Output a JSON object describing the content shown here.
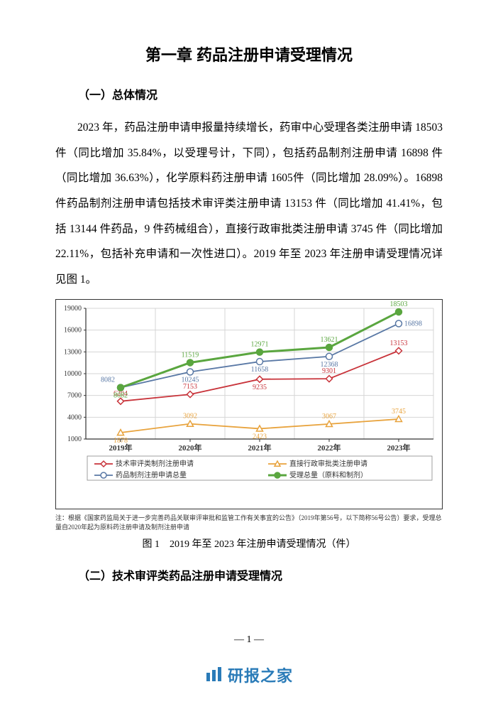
{
  "title": "第一章 药品注册申请受理情况",
  "section1_title": "（一）总体情况",
  "paragraph1": "2023 年，药品注册申请申报量持续增长，药审中心受理各类注册申请 18503 件（同比增加 35.84%，以受理号计，下同），包括药品制剂注册申请 16898 件（同比增加 36.63%），化学原料药注册申请 1605件（同比增加 28.09%）。16898 件药品制剂注册申请包括技术审评类注册申请 13153 件（同比增加 41.41%，包括 13144 件药品，9 件药械组合），直接行政审批类注册申请 3745 件（同比增加 22.11%，包括补充申请和一次性进口）。2019 年至 2023 年注册申请受理情况详见图 1。",
  "chart": {
    "type": "line",
    "categories": [
      "2019年",
      "2020年",
      "2021年",
      "2022年",
      "2023年"
    ],
    "series": [
      {
        "name": "技术审评类制剂注册申请",
        "values": [
          6204,
          7153,
          9235,
          9301,
          13153
        ],
        "color": "#c8333a",
        "marker": "diamond",
        "label_pos": [
          "above",
          "above",
          "below",
          "above",
          "above"
        ]
      },
      {
        "name": "直接行政审批类注册申请",
        "values": [
          1878,
          3092,
          2423,
          3067,
          3745
        ],
        "color": "#e8a33d",
        "marker": "triangle",
        "label_pos": [
          "below",
          "above",
          "below",
          "above",
          "above"
        ]
      },
      {
        "name": "药品制剂注册申请总量",
        "values": [
          8082,
          10245,
          11658,
          12368,
          16898
        ],
        "color": "#5978a5",
        "marker": "circle",
        "label_pos": [
          "above-left",
          "below",
          "below",
          "below",
          "right"
        ]
      },
      {
        "name": "受理总量（原料和制剂）",
        "values": [
          8082,
          11519,
          12971,
          13621,
          18503
        ],
        "color": "#5aa63f",
        "marker": "circle-filled",
        "thick": true,
        "label_pos": [
          "below",
          "above",
          "above",
          "above",
          "above"
        ]
      }
    ],
    "ylim": [
      1000,
      19000
    ],
    "ytick_step": 3000,
    "plot_bg": "#ffffff",
    "grid_color": "#d5d5d5",
    "axis_color": "#333333",
    "tick_fontsize": 10,
    "label_fontsize": 9,
    "legend_fontsize": 10,
    "category_bold": true
  },
  "chart_note": "注：根据《国家药监局关于进一步完善药品关联审评审批和监管工作有关事宜的公告》（2019年第56号，以下简称56号公告）要求，受理总量自2020年起为原料药注册申请及制剂注册申请",
  "figure_caption": "图 1　2019 年至 2023 年注册申请受理情况（件）",
  "section2_title": "（二）技术审评类药品注册申请受理情况",
  "page_number": "— 1 —",
  "watermark_text": "研报之家"
}
